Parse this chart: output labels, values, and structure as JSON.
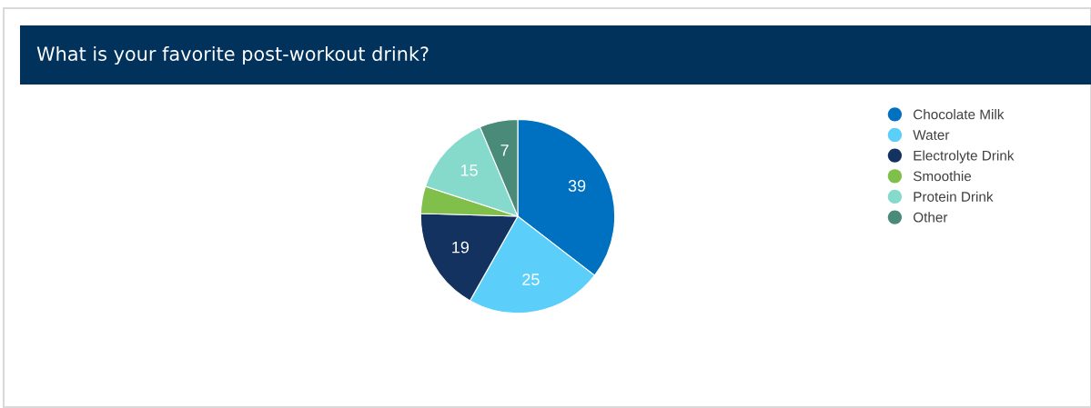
{
  "chart_data": {
    "type": "pie",
    "title": "What is your favorite post-workout drink?",
    "categories": [
      "Chocolate Milk",
      "Water",
      "Electrolyte Drink",
      "Smoothie",
      "Protein Drink",
      "Other"
    ],
    "values": [
      39,
      25,
      19,
      5,
      15,
      7
    ],
    "colors": [
      "#0070c0",
      "#5bcffa",
      "#14325f",
      "#7fbf4a",
      "#86dacb",
      "#4a8a78"
    ],
    "value_labels": [
      "39",
      "25",
      "19",
      null,
      "15",
      "7"
    ],
    "legend": "right"
  }
}
